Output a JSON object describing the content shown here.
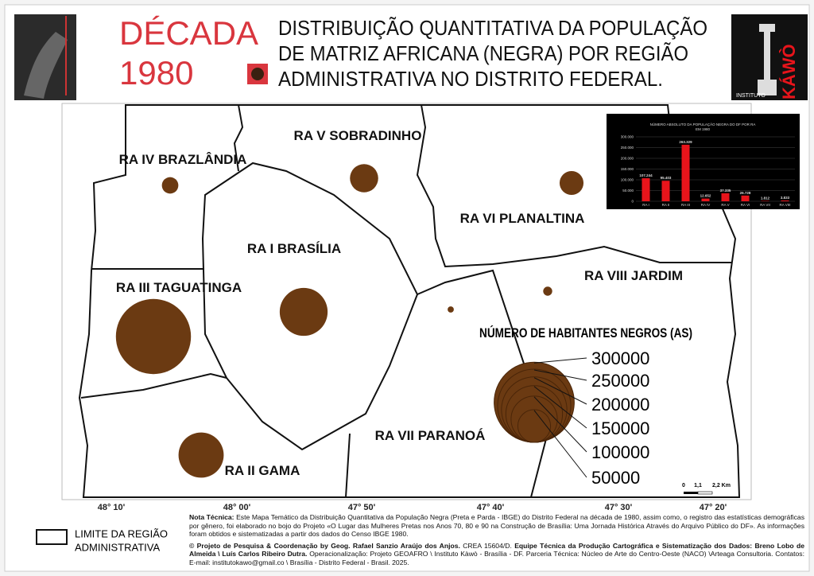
{
  "header": {
    "decade": "DÉCADA",
    "year": "1980",
    "title": [
      "DISTRIBUIÇÃO QUANTITATIVA DA POPULAÇÃO",
      "DE MATRIZ AFRICANA (NEGRA) POR REGIÃO",
      "ADMINISTRATIVA NO DISTRITO FEDERAL."
    ],
    "logo_small": "INSTITUTO",
    "logo_big": "KÁWÒ"
  },
  "map": {
    "regions": [
      {
        "label": "RA I BRASÍLIA",
        "population": 107244
      },
      {
        "label": "RA II GAMA",
        "population": 95403
      },
      {
        "label": "RA III TAGUATINGA",
        "population": 263329
      },
      {
        "label": "RA IV BRAZLÂNDIA",
        "population": 12652
      },
      {
        "label": "RA V SOBRADINHO",
        "population": 37335
      },
      {
        "label": "RA VI PLANALTINA",
        "population": 26728
      },
      {
        "label": "RA VII PARANOÁ",
        "population": 1812
      },
      {
        "label": "RA VIII JARDIM",
        "population": 3833
      }
    ],
    "bubble_color": "#6b3a12",
    "legend_title": "NÚMERO DE HABITANTES NEGROS (AS)",
    "legend_values": [
      300000,
      250000,
      200000,
      150000,
      100000,
      50000
    ],
    "longitudes": [
      "48° 10'",
      "48° 00'",
      "47° 50'",
      "47° 40'",
      "47° 30'",
      "47° 20'"
    ],
    "scale_labels": [
      "0",
      "1,1",
      "2,2 Km"
    ],
    "boundary_legend": [
      "LIMITE DA REGIÃO",
      "ADMINISTRATIVA"
    ]
  },
  "inset_chart": {
    "type": "bar",
    "title": [
      "NÚMERO ABSOLUTO DA POPULAÇÃO NEGRA DO DF POR RA",
      "EM 1980"
    ],
    "categories": [
      "RA I",
      "RA II",
      "RA III",
      "RA IV",
      "RA V",
      "RA VI",
      "RA VII",
      "RA VIII"
    ],
    "values": [
      107244,
      95403,
      263329,
      12652,
      37335,
      26728,
      1812,
      3833
    ],
    "value_labels": [
      "107.244",
      "95.403",
      "263.329",
      "12.652",
      "37.335",
      "26.728",
      "1.812",
      "3.833"
    ],
    "color": "#e8141b",
    "ylim": [
      0,
      300000
    ],
    "yticks": [
      0,
      {
        "value": 50000,
        "label": "50.000"
      },
      {
        "value": 100000,
        "label": "100.000"
      },
      {
        "value": 150000,
        "label": "150.000"
      },
      {
        "value": 200000,
        "label": "200.000"
      },
      {
        "value": 250000,
        "label": "250.000"
      },
      {
        "value": 300000,
        "label": "300.000"
      }
    ],
    "grid": true
  },
  "note": {
    "label": "Nota Técnica:",
    "text": "Este Mapa Temático da Distribuição Quantitativa da População Negra (Preta e Parda - IBGE) do Distrito Federal na década de 1980, assim como, o registro das estatísticas demográficas por gênero, foi elaborado no bojo do Projeto «O Lugar das Mulheres Pretas nos Anos 70, 80 e 90 na Construção de Brasília: Uma Jornada Histórica Através do Arquivo Público do DF». As informações foram obtidos e sistematizadas a partir dos dados do Censo IBGE 1980."
  },
  "credits": [
    {
      "text": "© Projeto de Pesquisa & Coordenação by Geog. Rafael Sanzio Araújo dos Anjos.",
      "bold": true
    },
    {
      "text": " CREA 15604/D. ",
      "bold": false
    },
    {
      "text": "Equipe Técnica da Produção Cartográfica e Sistematização dos Dados: Breno Lobo de Almeida \\ Luís Carlos Ribeiro Dutra.",
      "bold": true
    },
    {
      "text": " Operacionalização: Projeto GEOAFRO \\ Instituto Kàwò - Brasília - DF. Parceria Técnica: Núcleo de Arte do Centro-Oeste (NACO) \\Arteaga Consultoria. Contatos: E-mail: institutokawo@gmail.co \\ Brasília - Distrito Federal - Brasil. 2025.",
      "bold": false
    }
  ]
}
